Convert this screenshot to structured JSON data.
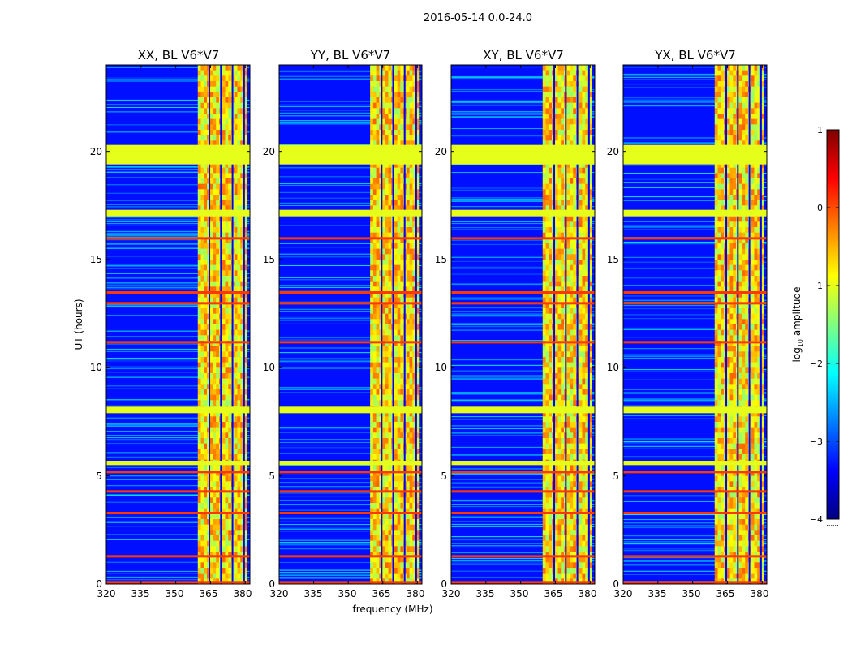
{
  "suptitle": "2016-05-14 0.0-24.0",
  "colorbar": {
    "label_prefix": "log",
    "label_sub": "10",
    "label_suffix": " amplitude",
    "ticks": [
      "1",
      "0",
      "−1",
      "−2",
      "−3",
      "−4"
    ],
    "footnote": "......",
    "colormap": "jet",
    "range": [
      -4,
      1
    ]
  },
  "chart_data": [
    {
      "type": "heatmap",
      "title": "XX, BL V6*V7",
      "xlabel": "",
      "ylabel": "UT (hours)",
      "xlim": [
        320,
        382
      ],
      "ylim": [
        0,
        24
      ],
      "xticks": [
        "320",
        "335",
        "350",
        "365",
        "380"
      ],
      "yticks": [
        "0",
        "5",
        "10",
        "15",
        "20"
      ],
      "features": {
        "background_log_amp": -3.3,
        "strong_band_mhz": [
          359.5,
          380.5
        ],
        "channel_gaps_mhz": [
          364.5,
          369.5,
          374.5,
          379.5
        ],
        "rfi_flagged_rows_hours": [
          [
            19.4,
            20.3
          ],
          [
            17.0,
            17.3
          ],
          [
            7.9,
            8.2
          ],
          [
            5.5,
            5.7
          ]
        ],
        "hot_rows_hours": [
          16.0,
          13.5,
          13.0,
          11.2,
          5.2,
          4.3,
          3.3,
          1.3,
          0.1
        ]
      }
    },
    {
      "type": "heatmap",
      "title": "YY, BL V6*V7",
      "xlabel": "frequency (MHz)",
      "ylabel": "",
      "xlim": [
        320,
        382
      ],
      "ylim": [
        0,
        24
      ],
      "xticks": [
        "320",
        "335",
        "350",
        "365",
        "380"
      ],
      "yticks": [
        "0",
        "5",
        "10",
        "15",
        "20"
      ],
      "features": {
        "background_log_amp": -3.3,
        "strong_band_mhz": [
          359.5,
          380.5
        ],
        "channel_gaps_mhz": [
          364.5,
          369.5,
          374.5,
          379.5
        ],
        "rfi_flagged_rows_hours": [
          [
            19.4,
            20.3
          ],
          [
            17.0,
            17.3
          ],
          [
            7.9,
            8.2
          ],
          [
            5.5,
            5.7
          ]
        ],
        "hot_rows_hours": [
          16.0,
          13.5,
          13.0,
          11.2,
          5.2,
          4.3,
          3.3,
          1.3,
          0.1
        ]
      }
    },
    {
      "type": "heatmap",
      "title": "XY, BL V6*V7",
      "xlabel": "",
      "ylabel": "",
      "xlim": [
        320,
        382
      ],
      "ylim": [
        0,
        24
      ],
      "xticks": [
        "320",
        "335",
        "350",
        "365",
        "380"
      ],
      "yticks": [
        "0",
        "5",
        "10",
        "15",
        "20"
      ],
      "features": {
        "background_log_amp": -3.3,
        "strong_band_mhz": [
          359.5,
          380.5
        ],
        "channel_gaps_mhz": [
          364.5,
          369.5,
          374.5,
          379.5
        ],
        "rfi_flagged_rows_hours": [
          [
            19.4,
            20.3
          ],
          [
            17.0,
            17.3
          ],
          [
            7.9,
            8.2
          ],
          [
            5.5,
            5.7
          ]
        ],
        "hot_rows_hours": [
          16.0,
          13.5,
          13.0,
          11.2,
          5.2,
          4.3,
          3.3,
          1.3,
          0.1
        ]
      }
    },
    {
      "type": "heatmap",
      "title": "YX, BL V6*V7",
      "xlabel": "",
      "ylabel": "",
      "xlim": [
        320,
        382
      ],
      "ylim": [
        0,
        24
      ],
      "xticks": [
        "320",
        "335",
        "350",
        "365",
        "380"
      ],
      "yticks": [
        "0",
        "5",
        "10",
        "15",
        "20"
      ],
      "features": {
        "background_log_amp": -3.3,
        "strong_band_mhz": [
          359.5,
          380.5
        ],
        "channel_gaps_mhz": [
          364.5,
          369.5,
          374.5,
          379.5
        ],
        "rfi_flagged_rows_hours": [
          [
            19.4,
            20.3
          ],
          [
            17.0,
            17.3
          ],
          [
            7.9,
            8.2
          ],
          [
            5.5,
            5.7
          ]
        ],
        "hot_rows_hours": [
          16.0,
          13.5,
          13.0,
          11.2,
          5.2,
          4.3,
          3.3,
          1.3,
          0.1
        ]
      }
    }
  ]
}
